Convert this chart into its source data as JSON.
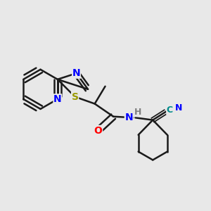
{
  "background_color": "#e8e8e8",
  "bond_color": "#1a1a1a",
  "bond_width": 1.8,
  "atom_colors": {
    "N": "#0000ff",
    "O": "#ff0000",
    "S": "#999900",
    "C_cyan": "#008b8b",
    "H": "#808080"
  },
  "font_size_atom": 10,
  "font_size_small": 9
}
